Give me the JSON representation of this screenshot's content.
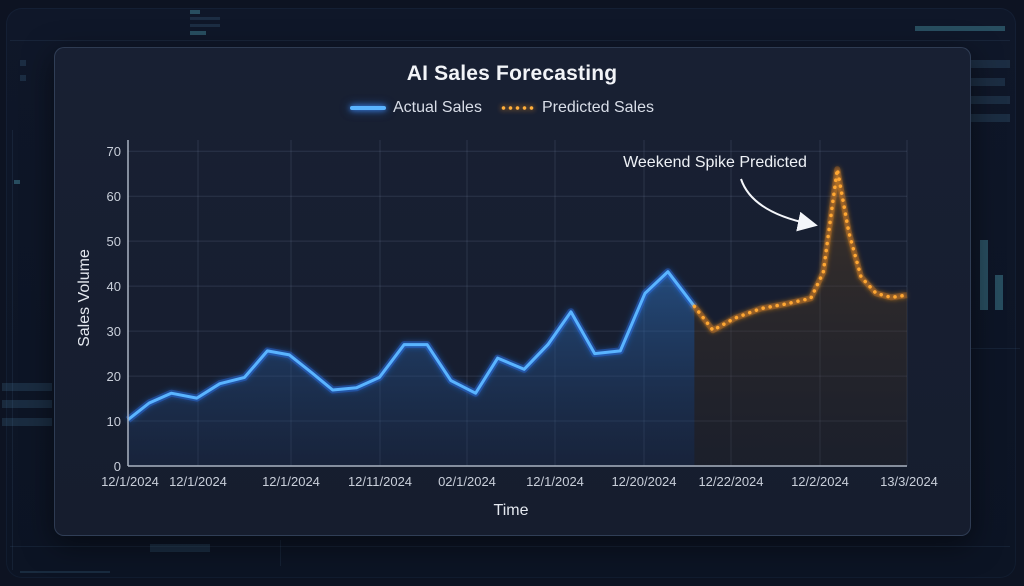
{
  "chart_data": {
    "type": "line",
    "title": "AI Sales Forecasting",
    "xlabel": "Time",
    "ylabel": "Sales Volume",
    "ylim": [
      0,
      70
    ],
    "yticks": [
      0,
      10,
      20,
      30,
      40,
      50,
      60,
      70
    ],
    "xtick_labels": [
      "12/1/2024",
      "12/1/2024",
      "12/1/2024",
      "12/11/2024",
      "02/1/2024",
      "12/1/2024",
      "12/20/2024",
      "12/22/2024",
      "12/2/2024",
      "13/3/2024"
    ],
    "grid": true,
    "legend": {
      "position": "top-center",
      "entries": [
        "Actual Sales",
        "Predicted Sales"
      ]
    },
    "series": [
      {
        "name": "Actual Sales",
        "style": "solid-glow",
        "color": "#5ab4ff",
        "x": [
          0,
          0.24,
          0.49,
          0.78,
          1.04,
          1.32,
          1.58,
          1.83,
          2.08,
          2.32,
          2.59,
          2.85,
          3.13,
          3.39,
          3.66,
          3.94,
          4.19,
          4.49,
          4.76,
          5.02,
          5.29,
          5.58,
          5.86,
          6.12,
          6.42
        ],
        "values": [
          10.3,
          14,
          16.2,
          15.1,
          18.3,
          19.7,
          25.6,
          24.7,
          20.8,
          16.9,
          17.4,
          19.7,
          27,
          27,
          19,
          16.2,
          24,
          21.5,
          27,
          34.3,
          25,
          25.6,
          38.4,
          43.2,
          35.5
        ]
      },
      {
        "name": "Predicted Sales",
        "style": "dotted-glow",
        "color": "#ffa733",
        "x": [
          6.42,
          6.63,
          6.88,
          7.17,
          7.45,
          7.74,
          7.88,
          8.04,
          8.17,
          8.31,
          8.48,
          8.65,
          8.83
        ],
        "values": [
          35.5,
          30.2,
          32.9,
          35,
          36,
          37.3,
          43,
          66,
          52,
          42,
          38.4,
          37.5,
          38
        ]
      }
    ],
    "annotations": [
      {
        "text": "Weekend Spike Predicted",
        "points_to": {
          "series": "Predicted Sales",
          "value": 66
        }
      }
    ]
  },
  "header": {
    "title": "AI Sales Forecasting"
  },
  "legend": {
    "actual_label": "Actual Sales",
    "predicted_label": "Predicted Sales"
  },
  "axes": {
    "y_title": "Sales Volume",
    "x_title": "Time",
    "y_ticks": [
      "0",
      "10",
      "20",
      "30",
      "40",
      "50",
      "60",
      "70"
    ],
    "x_ticks": [
      "12/1/2024",
      "12/1/2024",
      "12/1/2024",
      "12/11/2024",
      "02/1/2024",
      "12/1/2024",
      "12/20/2024",
      "12/22/2024",
      "12/2/2024",
      "13/3/2024"
    ]
  },
  "annotation": {
    "text": "Weekend Spike Predicted"
  },
  "colors": {
    "actual": "#5ab4ff",
    "predicted": "#ffa733",
    "panel": "#182033",
    "background": "#0d1322"
  }
}
